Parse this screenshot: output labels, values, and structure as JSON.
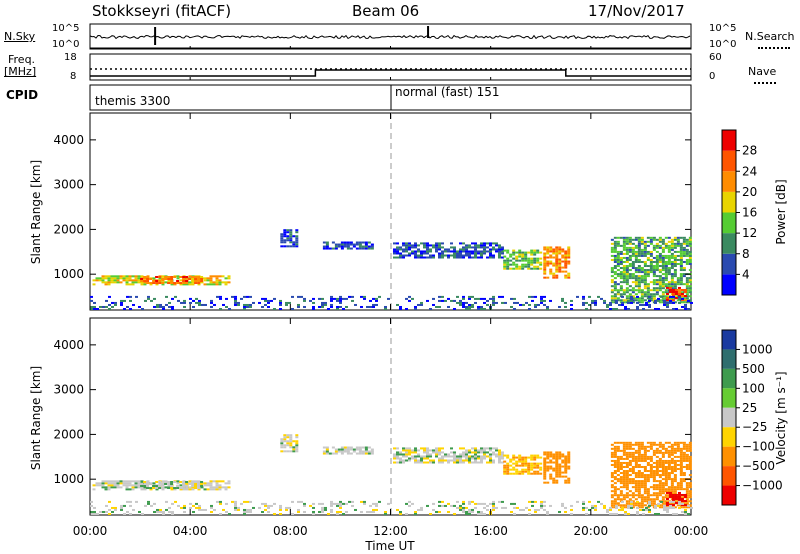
{
  "header": {
    "station": "Stokkseyri (fitACF)",
    "beam": "Beam 06",
    "date": "17/Nov/2017"
  },
  "nsky": {
    "label": "N.Sky",
    "scale_top": "10^5",
    "scale_bottom": "10^0",
    "right_label": "N.Search",
    "right_top": "10^5",
    "right_bottom": "10^0"
  },
  "freq": {
    "label_line1": "Freq.",
    "label_line2": "[MHz]",
    "tick_top": "18",
    "tick_bottom": "8",
    "right_label": "Nave",
    "right_top": "60",
    "right_bottom": "0"
  },
  "cpid": {
    "label": "CPID",
    "segments": [
      "themis 3300",
      "normal (fast) 151"
    ]
  },
  "axes": {
    "ylabel": "Slant Range [km]",
    "xlabel": "Time UT",
    "yticks": [
      "1000",
      "2000",
      "3000",
      "4000"
    ],
    "xticks": [
      "00:00",
      "04:00",
      "08:00",
      "12:00",
      "16:00",
      "20:00",
      "00:00"
    ]
  },
  "power_scale": {
    "label": "Power [dB]",
    "ticks": [
      "4",
      "8",
      "12",
      "16",
      "20",
      "24",
      "28"
    ],
    "colors": [
      "#0000ff",
      "#2a4ab0",
      "#3a8a60",
      "#55cc33",
      "#e8d400",
      "#ff8c00",
      "#ff5500",
      "#ee0000"
    ]
  },
  "velocity_scale": {
    "label_main": "Velocity",
    "label_unit": "[m s⁻¹]",
    "ticks": [
      "1000",
      "500",
      "100",
      "25",
      "−25",
      "−100",
      "−500",
      "−1000"
    ],
    "colors": [
      "#1a3aa0",
      "#2f6e6e",
      "#3e9b4e",
      "#66cc33",
      "#c8c8c8",
      "#ffd400",
      "#ff9000",
      "#ff5500",
      "#ee0000"
    ]
  },
  "chart_data": {
    "type": "heatmap",
    "x_range_hours": [
      0,
      24
    ],
    "y_range_km": [
      200,
      4600
    ],
    "nave_timeline": [
      {
        "start_hour": 0,
        "end_hour": 9,
        "level": "low"
      },
      {
        "start_hour": 9,
        "end_hour": 19,
        "level": "high"
      },
      {
        "start_hour": 19,
        "end_hour": 24,
        "level": "low"
      }
    ],
    "cpid_change_hour": 12,
    "echo_regions": [
      {
        "t0": 0.1,
        "t1": 5.6,
        "r0": 750,
        "r1": 950,
        "power": 18,
        "velocity": 0
      },
      {
        "t0": 2.0,
        "t1": 4.4,
        "r0": 780,
        "r1": 950,
        "power": 24,
        "velocity": 0
      },
      {
        "t0": 7.6,
        "t1": 8.2,
        "r0": 1600,
        "r1": 2000,
        "power": 6,
        "velocity": 0
      },
      {
        "t0": 9.3,
        "t1": 11.3,
        "r0": 1550,
        "r1": 1700,
        "power": 6,
        "velocity": 0
      },
      {
        "t0": 12.1,
        "t1": 16.5,
        "r0": 1350,
        "r1": 1700,
        "power": 6,
        "velocity": 0
      },
      {
        "t0": 16.5,
        "t1": 18.0,
        "r0": 1100,
        "r1": 1550,
        "power": 14,
        "velocity": -100
      },
      {
        "t0": 18.1,
        "t1": 19.1,
        "r0": 900,
        "r1": 1600,
        "power": 22,
        "velocity": -300
      },
      {
        "t0": 20.8,
        "t1": 24.0,
        "r0": 350,
        "r1": 1800,
        "power": 12,
        "velocity": -400
      },
      {
        "t0": 23.0,
        "t1": 23.8,
        "r0": 400,
        "r1": 700,
        "power": 28,
        "velocity": -700
      },
      {
        "t0": 0.0,
        "t1": 24.0,
        "r0": 200,
        "r1": 500,
        "power": 6,
        "velocity": 0
      }
    ]
  }
}
